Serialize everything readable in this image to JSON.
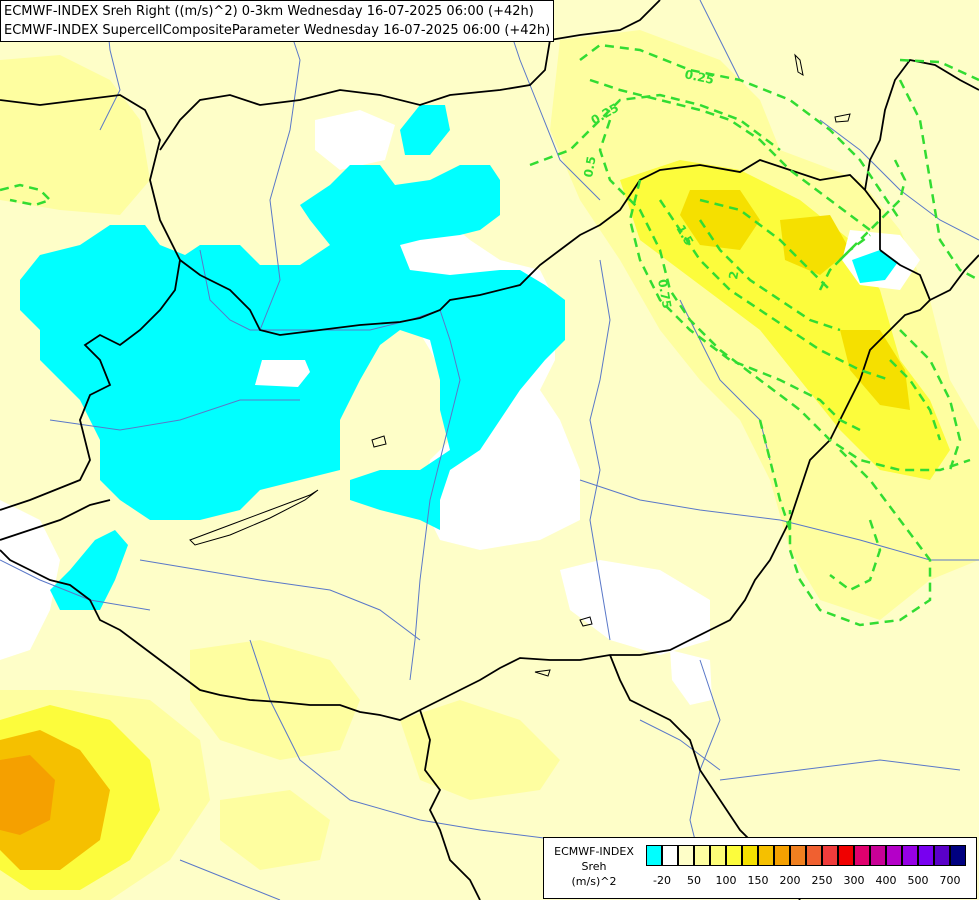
{
  "title": {
    "line1": "ECMWF-INDEX Sreh Right ((m/s)^2) 0-3km Wednesday 16-07-2025 06:00 (+42h)",
    "line2": "ECMWF-INDEX SupercellCompositeParameter Wednesday 16-07-2025 06:00 (+42h)"
  },
  "contour_labels": {
    "l1": "0.25",
    "l2": "0.25",
    "l3": "0.5",
    "l4": "1.5",
    "l5": "0.75",
    "l6": "2"
  },
  "legend": {
    "name": "ECMWF-INDEX",
    "variable": "Sreh",
    "unit": "(m/s)^2",
    "colors": [
      "#00ffff",
      "#ffffff",
      "#fefec8",
      "#fefea0",
      "#fdfd78",
      "#fcfc3c",
      "#f5e000",
      "#f5c000",
      "#f5a000",
      "#f08020",
      "#f06030",
      "#f03c3c",
      "#f00000",
      "#e0006e",
      "#c80096",
      "#b400c8",
      "#9600e6",
      "#7800f0",
      "#5a00c8",
      "#000080"
    ],
    "ticks": [
      "-20",
      "50",
      "100",
      "150",
      "200",
      "250",
      "300",
      "400",
      "500",
      "700"
    ]
  },
  "colors": {
    "background": "#fefec8",
    "cyan": "#00ffff",
    "yellow_light": "#fefea0",
    "yellow": "#fcfc3c",
    "orange": "#f5c000",
    "contour": "#32dc32",
    "border": "#000000",
    "river": "#5a78c8"
  }
}
